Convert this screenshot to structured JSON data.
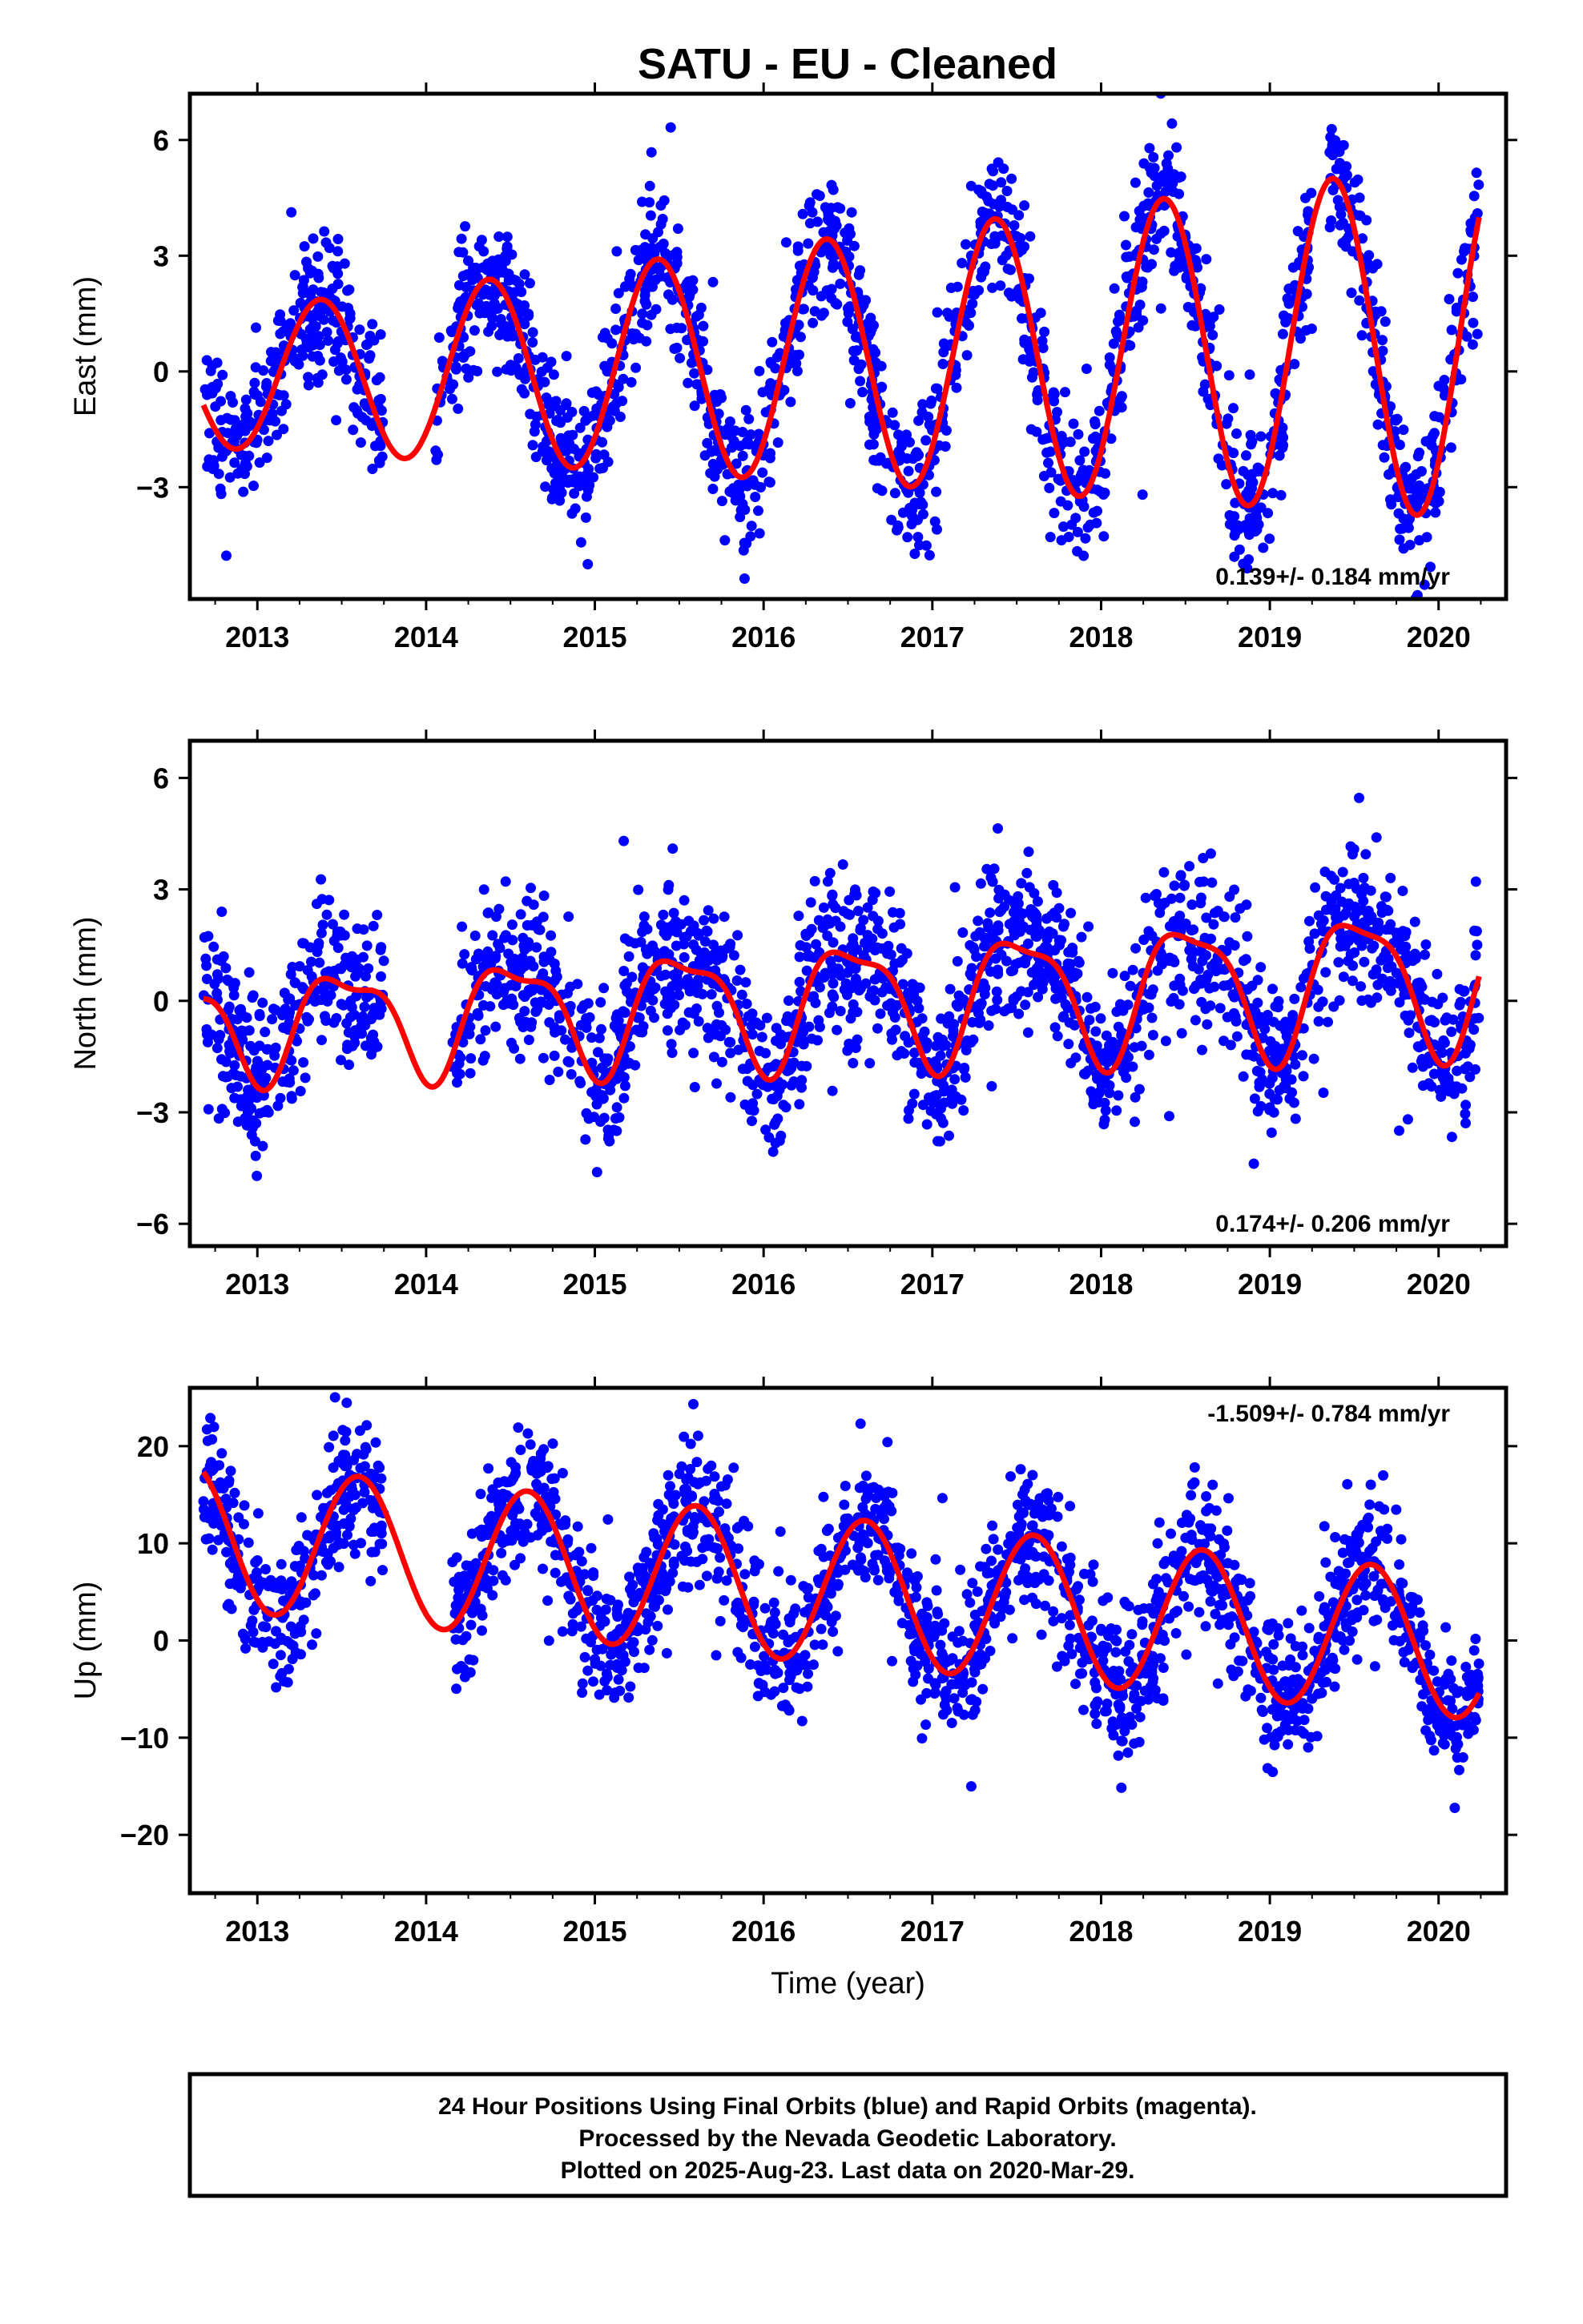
{
  "title": "SATU  - EU - Cleaned",
  "footer": {
    "lines": [
      "24 Hour Positions Using Final Orbits (blue) and Rapid Orbits (magenta).",
      "Processed by the Nevada Geodetic Laboratory.",
      "Plotted on 2025-Aug-23. Last data on 2020-Mar-29."
    ]
  },
  "colors": {
    "points": "#0000ff",
    "fit": "#ff0000",
    "frame": "#000000"
  },
  "chart_data": [
    {
      "type": "scatter",
      "ylabel": "East (mm)",
      "xlabel": "",
      "xlim": [
        2012.6,
        2020.4
      ],
      "ylim": [
        -5.9,
        7.2
      ],
      "xticks": [
        2013,
        2014,
        2015,
        2016,
        2017,
        2018,
        2019,
        2020
      ],
      "yticks": [
        -3,
        0,
        3,
        6
      ],
      "rate_label": "0.139+/- 0.184 mm/yr",
      "rate_position": "bottom-right",
      "data_range": [
        2012.68,
        2020.24
      ],
      "gaps": [
        [
          2013.75,
          2014.05
        ],
        [
          2019.25,
          2019.35
        ]
      ],
      "fit": {
        "mean": 0.3,
        "trend": 0.139,
        "annual_amp": 3.2,
        "annual_amp_growth": 0.12,
        "peak_year_phase": 0.37,
        "semiannual_amp": 0.0,
        "semiannual_phase": 0.0
      },
      "noise_sd": 0.95,
      "point_count": 2050,
      "seed": 11
    },
    {
      "type": "scatter",
      "ylabel": "North (mm)",
      "xlabel": "",
      "xlim": [
        2012.6,
        2020.4
      ],
      "ylim": [
        -6.6,
        7.0
      ],
      "xticks": [
        2013,
        2014,
        2015,
        2016,
        2017,
        2018,
        2019,
        2020
      ],
      "yticks": [
        -6,
        -3,
        0,
        3,
        6
      ],
      "rate_label": "0.174+/- 0.206 mm/yr",
      "rate_position": "bottom-right",
      "data_range": [
        2012.68,
        2020.24
      ],
      "gaps": [
        [
          2013.75,
          2014.15
        ]
      ],
      "fit": {
        "mean": 0.0,
        "trend": 0.174,
        "annual_amp": 1.6,
        "annual_amp_growth": 0.05,
        "peak_year_phase": 0.52,
        "semiannual_amp": 0.5,
        "semiannual_phase": 0.3
      },
      "noise_sd": 1.05,
      "point_count": 2050,
      "seed": 23
    },
    {
      "type": "scatter",
      "ylabel": "Up (mm)",
      "xlabel": "Time (year)",
      "xlim": [
        2012.6,
        2020.4
      ],
      "ylim": [
        -26,
        26
      ],
      "xticks": [
        2013,
        2014,
        2015,
        2016,
        2017,
        2018,
        2019,
        2020
      ],
      "yticks": [
        -20,
        -10,
        0,
        10,
        20
      ],
      "rate_label": "-1.509+/- 0.784 mm/yr",
      "rate_position": "top-right",
      "data_range": [
        2012.68,
        2020.24
      ],
      "gaps": [
        [
          2013.75,
          2014.15
        ]
      ],
      "fit": {
        "mean": 5.0,
        "trend": -1.509,
        "annual_amp": 7.5,
        "annual_amp_growth": 0.0,
        "peak_year_phase": 0.6,
        "semiannual_amp": 0.0,
        "semiannual_phase": 0.0
      },
      "noise_sd": 3.8,
      "point_count": 2050,
      "seed": 37
    }
  ]
}
